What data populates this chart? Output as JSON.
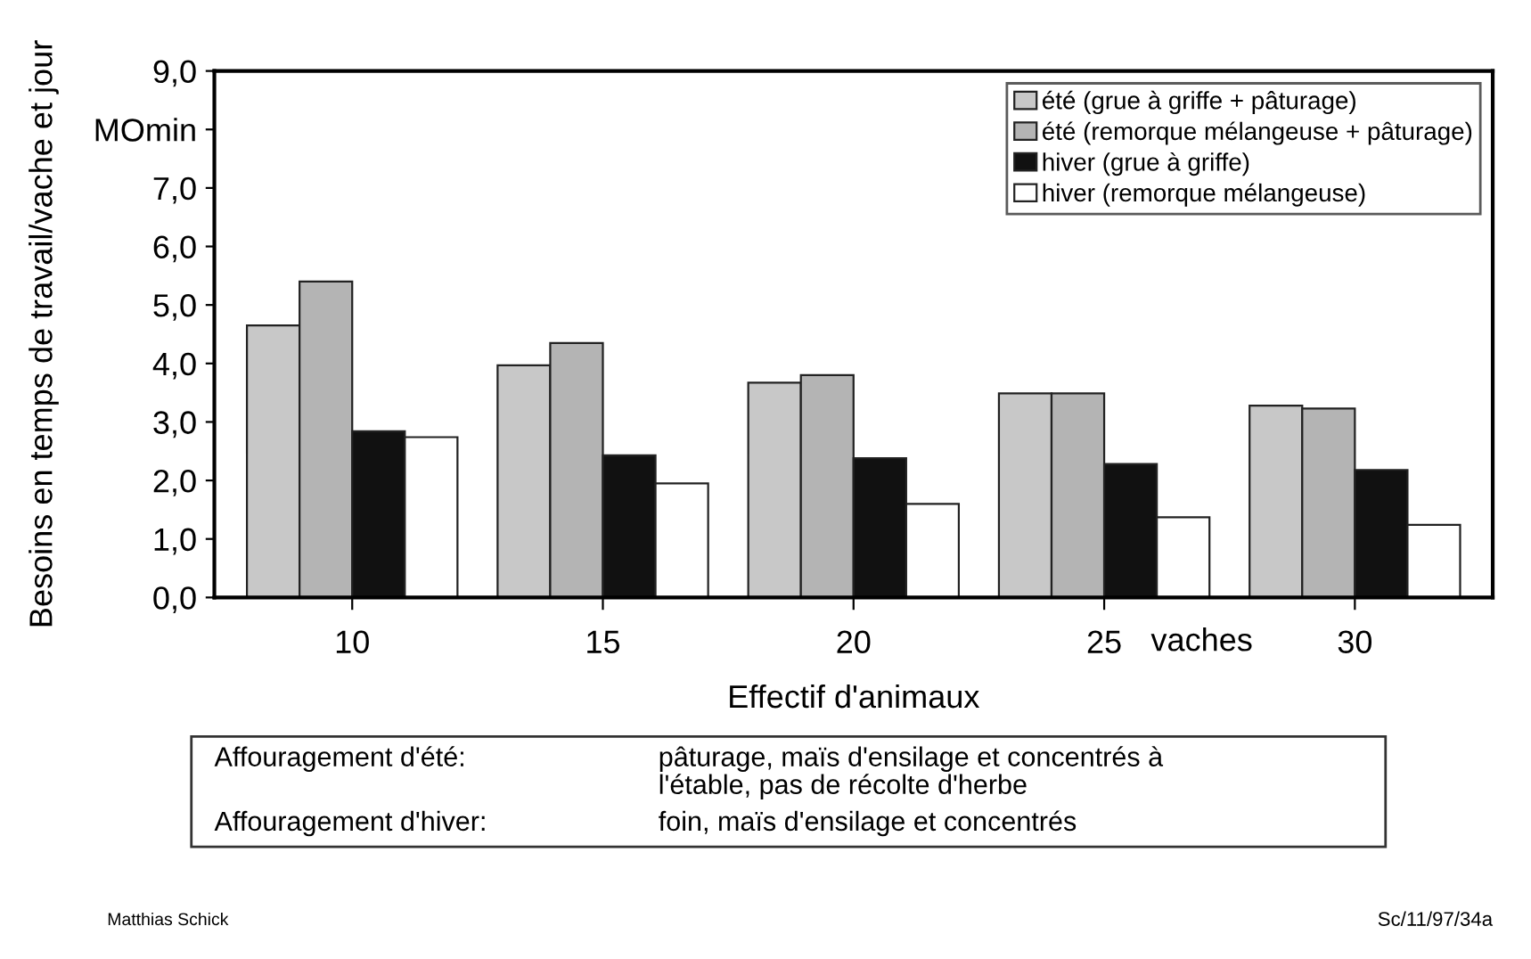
{
  "chart_data": {
    "type": "bar",
    "ylabel": "Besoins en temps de travail/vache et jour",
    "xlabel": "Effectif d'animaux",
    "categories": [
      "10",
      "15",
      "20",
      "25",
      "30"
    ],
    "series": [
      {
        "name": "été (grue à griffe + pâturage)",
        "color": "#c8c8c8",
        "values": [
          4.65,
          3.97,
          3.67,
          3.49,
          3.28
        ]
      },
      {
        "name": "été (remorque mélangeuse + pâturage)",
        "color": "#b4b4b4",
        "values": [
          5.4,
          4.35,
          3.8,
          3.49,
          3.23
        ]
      },
      {
        "name": "hiver (grue à griffe)",
        "color": "#111111",
        "values": [
          2.84,
          2.43,
          2.38,
          2.28,
          2.18
        ]
      },
      {
        "name": "hiver (remorque mélangeuse)",
        "color": "#ffffff",
        "values": [
          2.74,
          1.95,
          1.6,
          1.37,
          1.24
        ]
      }
    ],
    "ylim": [
      0,
      9
    ],
    "yticks": [
      "0,0",
      {
        "value": 1,
        "label": "1,0"
      },
      {
        "value": 2,
        "label": "2,0"
      },
      {
        "value": 3,
        "label": "3,0"
      },
      {
        "value": 4,
        "label": "4,0"
      },
      {
        "value": 5,
        "label": "5,0"
      },
      {
        "value": 6,
        "label": "6,0"
      },
      {
        "value": 7,
        "label": "7,0"
      },
      {
        "value": 8,
        "label": "MOmin"
      },
      {
        "value": 9,
        "label": "9,0"
      }
    ],
    "legend": "top right",
    "grid": false,
    "annotations": [
      "vaches",
      "Affouragement d'été:",
      "pâturage, maïs d'ensilage et concentrés à\nl'étable, pas de récolte d'herbe",
      "Affouragement d'hiver:",
      "foin, maïs d'ensilage et concentrés",
      "Matthias Schick",
      "Sc/11/97/34a"
    ]
  }
}
